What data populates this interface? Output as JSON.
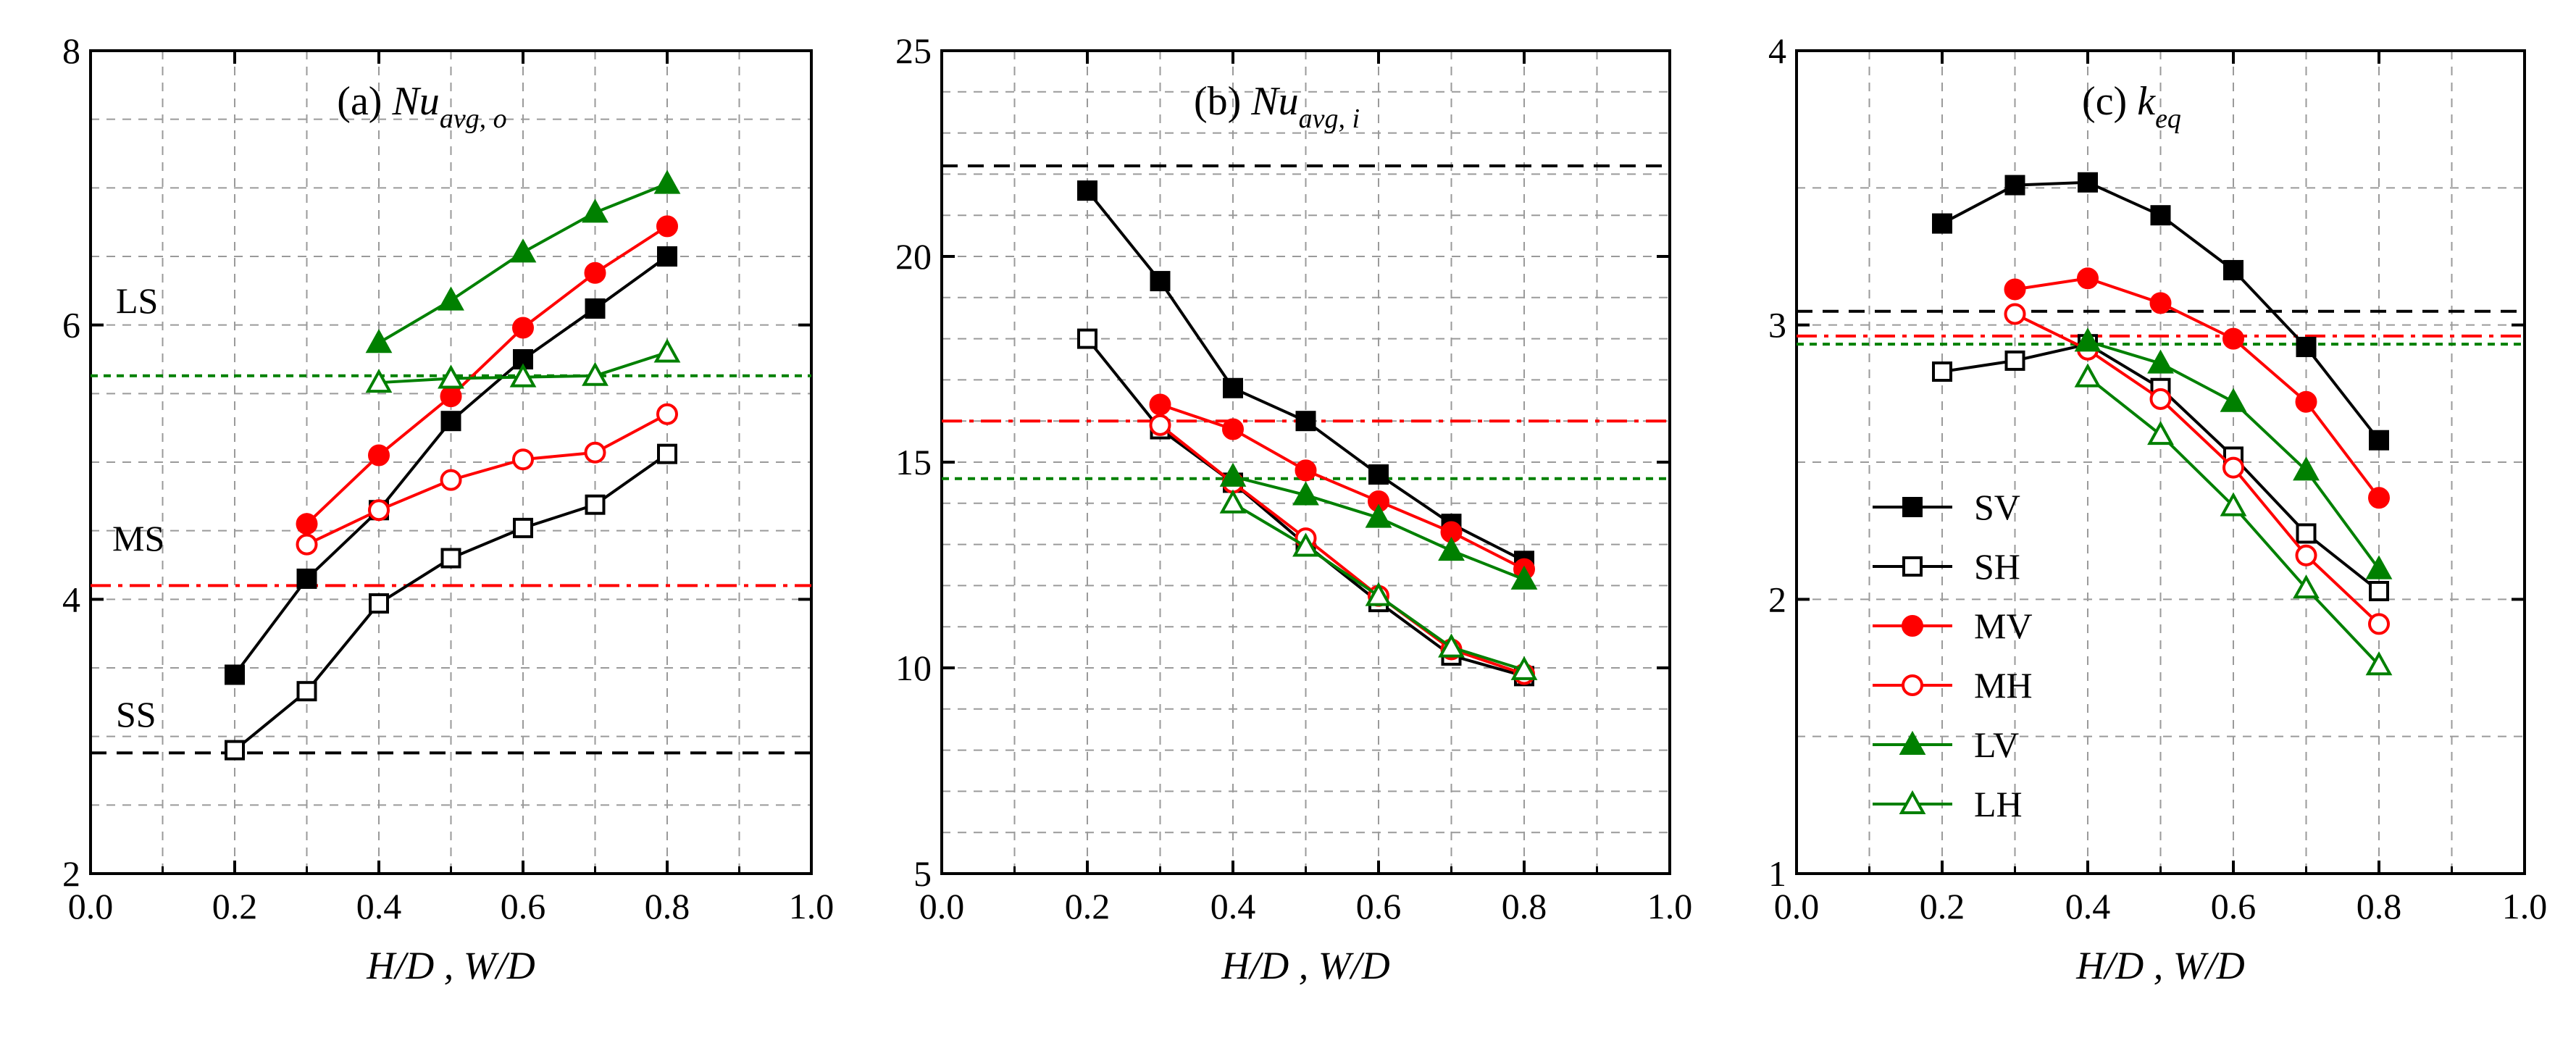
{
  "chart_data": [
    {
      "type": "line",
      "panel_label": "(a)",
      "title_main": "Nu",
      "title_sub": "avg, o",
      "xlabel": "H/D , W/D",
      "ylabel": "",
      "xlim": [
        0.0,
        1.0
      ],
      "ylim": [
        2,
        8
      ],
      "xticks": [
        "0.0",
        "0.2",
        "0.4",
        "0.6",
        "0.8",
        "1.0"
      ],
      "yticks": [
        "2",
        "4",
        "6",
        "8"
      ],
      "grid": true,
      "series": [
        {
          "name": "SV",
          "color": "#000000",
          "marker": "square-filled",
          "x": [
            0.2,
            0.3,
            0.4,
            0.5,
            0.6,
            0.7,
            0.8
          ],
          "y": [
            3.45,
            4.15,
            4.65,
            5.3,
            5.75,
            6.12,
            6.5
          ]
        },
        {
          "name": "SH",
          "color": "#000000",
          "marker": "square-open",
          "x": [
            0.2,
            0.3,
            0.4,
            0.5,
            0.6,
            0.7,
            0.8
          ],
          "y": [
            2.9,
            3.33,
            3.97,
            4.3,
            4.52,
            4.69,
            5.06
          ]
        },
        {
          "name": "MV",
          "color": "#ff0000",
          "marker": "circle-filled",
          "x": [
            0.3,
            0.4,
            0.5,
            0.6,
            0.7,
            0.8
          ],
          "y": [
            4.55,
            5.05,
            5.48,
            5.98,
            6.38,
            6.72
          ]
        },
        {
          "name": "MH",
          "color": "#ff0000",
          "marker": "circle-open",
          "x": [
            0.3,
            0.4,
            0.5,
            0.6,
            0.7,
            0.8
          ],
          "y": [
            4.4,
            4.65,
            4.87,
            5.02,
            5.07,
            5.35
          ]
        },
        {
          "name": "LV",
          "color": "#008000",
          "marker": "triangle-filled",
          "x": [
            0.4,
            0.5,
            0.6,
            0.7,
            0.8
          ],
          "y": [
            5.87,
            6.18,
            6.53,
            6.82,
            7.03
          ]
        },
        {
          "name": "LH",
          "color": "#008000",
          "marker": "triangle-open",
          "x": [
            0.4,
            0.5,
            0.6,
            0.7,
            0.8
          ],
          "y": [
            5.58,
            5.61,
            5.62,
            5.63,
            5.8
          ]
        }
      ],
      "reference_lines": [
        {
          "name": "SS",
          "y": 2.88,
          "color": "#000000",
          "style": "dashed"
        },
        {
          "name": "MS",
          "y": 4.1,
          "color": "#ff0000",
          "style": "dashdot"
        },
        {
          "name": "LS",
          "y": 5.63,
          "color": "#008000",
          "style": "dotted"
        }
      ],
      "annotations": [
        "LS",
        "MS",
        "SS"
      ]
    },
    {
      "type": "line",
      "panel_label": "(b)",
      "title_main": "Nu",
      "title_sub": "avg, i",
      "xlabel": "H/D , W/D",
      "ylabel": "",
      "xlim": [
        0.0,
        1.0
      ],
      "ylim": [
        5,
        25
      ],
      "xticks": [
        "0.0",
        "0.2",
        "0.4",
        "0.6",
        "0.8",
        "1.0"
      ],
      "yticks": [
        "5",
        "10",
        "15",
        "20",
        "25"
      ],
      "grid": true,
      "series": [
        {
          "name": "SV",
          "color": "#000000",
          "marker": "square-filled",
          "x": [
            0.2,
            0.3,
            0.4,
            0.5,
            0.6,
            0.7,
            0.8
          ],
          "y": [
            21.6,
            19.4,
            16.8,
            16.0,
            14.7,
            13.5,
            12.6
          ]
        },
        {
          "name": "SH",
          "color": "#000000",
          "marker": "square-open",
          "x": [
            0.2,
            0.3,
            0.4,
            0.5,
            0.6,
            0.7,
            0.8
          ],
          "y": [
            18.0,
            15.8,
            14.5,
            13.0,
            11.6,
            10.3,
            9.8
          ]
        },
        {
          "name": "MV",
          "color": "#ff0000",
          "marker": "circle-filled",
          "x": [
            0.3,
            0.4,
            0.5,
            0.6,
            0.7,
            0.8
          ],
          "y": [
            16.4,
            15.8,
            14.8,
            14.05,
            13.3,
            12.4
          ]
        },
        {
          "name": "MH",
          "color": "#ff0000",
          "marker": "circle-open",
          "x": [
            0.3,
            0.4,
            0.5,
            0.6,
            0.7,
            0.8
          ],
          "y": [
            15.9,
            14.5,
            13.15,
            11.75,
            10.45,
            9.85
          ]
        },
        {
          "name": "LV",
          "color": "#008000",
          "marker": "triangle-filled",
          "x": [
            0.4,
            0.5,
            0.6,
            0.7,
            0.8
          ],
          "y": [
            14.65,
            14.2,
            13.65,
            12.85,
            12.15
          ]
        },
        {
          "name": "LH",
          "color": "#008000",
          "marker": "triangle-open",
          "x": [
            0.4,
            0.5,
            0.6,
            0.7,
            0.8
          ],
          "y": [
            14.0,
            12.95,
            11.75,
            10.5,
            9.95
          ]
        }
      ],
      "reference_lines": [
        {
          "name": "SS",
          "y": 22.2,
          "color": "#000000",
          "style": "dashed"
        },
        {
          "name": "MS",
          "y": 16.0,
          "color": "#ff0000",
          "style": "dashdot"
        },
        {
          "name": "LS",
          "y": 14.6,
          "color": "#008000",
          "style": "dotted"
        }
      ]
    },
    {
      "type": "line",
      "panel_label": "(c)",
      "title_main": "k",
      "title_sub": "eq",
      "xlabel": "H/D , W/D",
      "ylabel": "",
      "xlim": [
        0.0,
        1.0
      ],
      "ylim": [
        1,
        4
      ],
      "xticks": [
        "0.0",
        "0.2",
        "0.4",
        "0.6",
        "0.8",
        "1.0"
      ],
      "yticks": [
        "1",
        "2",
        "3",
        "4"
      ],
      "grid": true,
      "series": [
        {
          "name": "SV",
          "color": "#000000",
          "marker": "square-filled",
          "x": [
            0.2,
            0.3,
            0.4,
            0.5,
            0.6,
            0.7,
            0.8
          ],
          "y": [
            3.37,
            3.51,
            3.52,
            3.4,
            3.2,
            2.92,
            2.58
          ]
        },
        {
          "name": "SH",
          "color": "#000000",
          "marker": "square-open",
          "x": [
            0.2,
            0.3,
            0.4,
            0.5,
            0.6,
            0.7,
            0.8
          ],
          "y": [
            2.83,
            2.87,
            2.93,
            2.77,
            2.52,
            2.24,
            2.03
          ]
        },
        {
          "name": "MV",
          "color": "#ff0000",
          "marker": "circle-filled",
          "x": [
            0.3,
            0.4,
            0.5,
            0.6,
            0.7,
            0.8
          ],
          "y": [
            3.13,
            3.17,
            3.08,
            2.95,
            2.72,
            2.37
          ]
        },
        {
          "name": "MH",
          "color": "#ff0000",
          "marker": "circle-open",
          "x": [
            0.3,
            0.4,
            0.5,
            0.6,
            0.7,
            0.8
          ],
          "y": [
            3.04,
            2.91,
            2.73,
            2.48,
            2.16,
            1.91
          ]
        },
        {
          "name": "LV",
          "color": "#008000",
          "marker": "triangle-filled",
          "x": [
            0.4,
            0.5,
            0.6,
            0.7,
            0.8
          ],
          "y": [
            2.94,
            2.86,
            2.72,
            2.47,
            2.11
          ]
        },
        {
          "name": "LH",
          "color": "#008000",
          "marker": "triangle-open",
          "x": [
            0.4,
            0.5,
            0.6,
            0.7,
            0.8
          ],
          "y": [
            2.81,
            2.6,
            2.34,
            2.04,
            1.76
          ]
        }
      ],
      "reference_lines": [
        {
          "name": "SS",
          "y": 3.05,
          "color": "#000000",
          "style": "dashed"
        },
        {
          "name": "MS",
          "y": 2.96,
          "color": "#ff0000",
          "style": "dashdot"
        },
        {
          "name": "LS",
          "y": 2.93,
          "color": "#008000",
          "style": "dotted"
        }
      ],
      "legend": {
        "placement": "lower-left",
        "entries": [
          "SV",
          "SH",
          "MV",
          "MH",
          "LV",
          "LH"
        ]
      }
    }
  ]
}
